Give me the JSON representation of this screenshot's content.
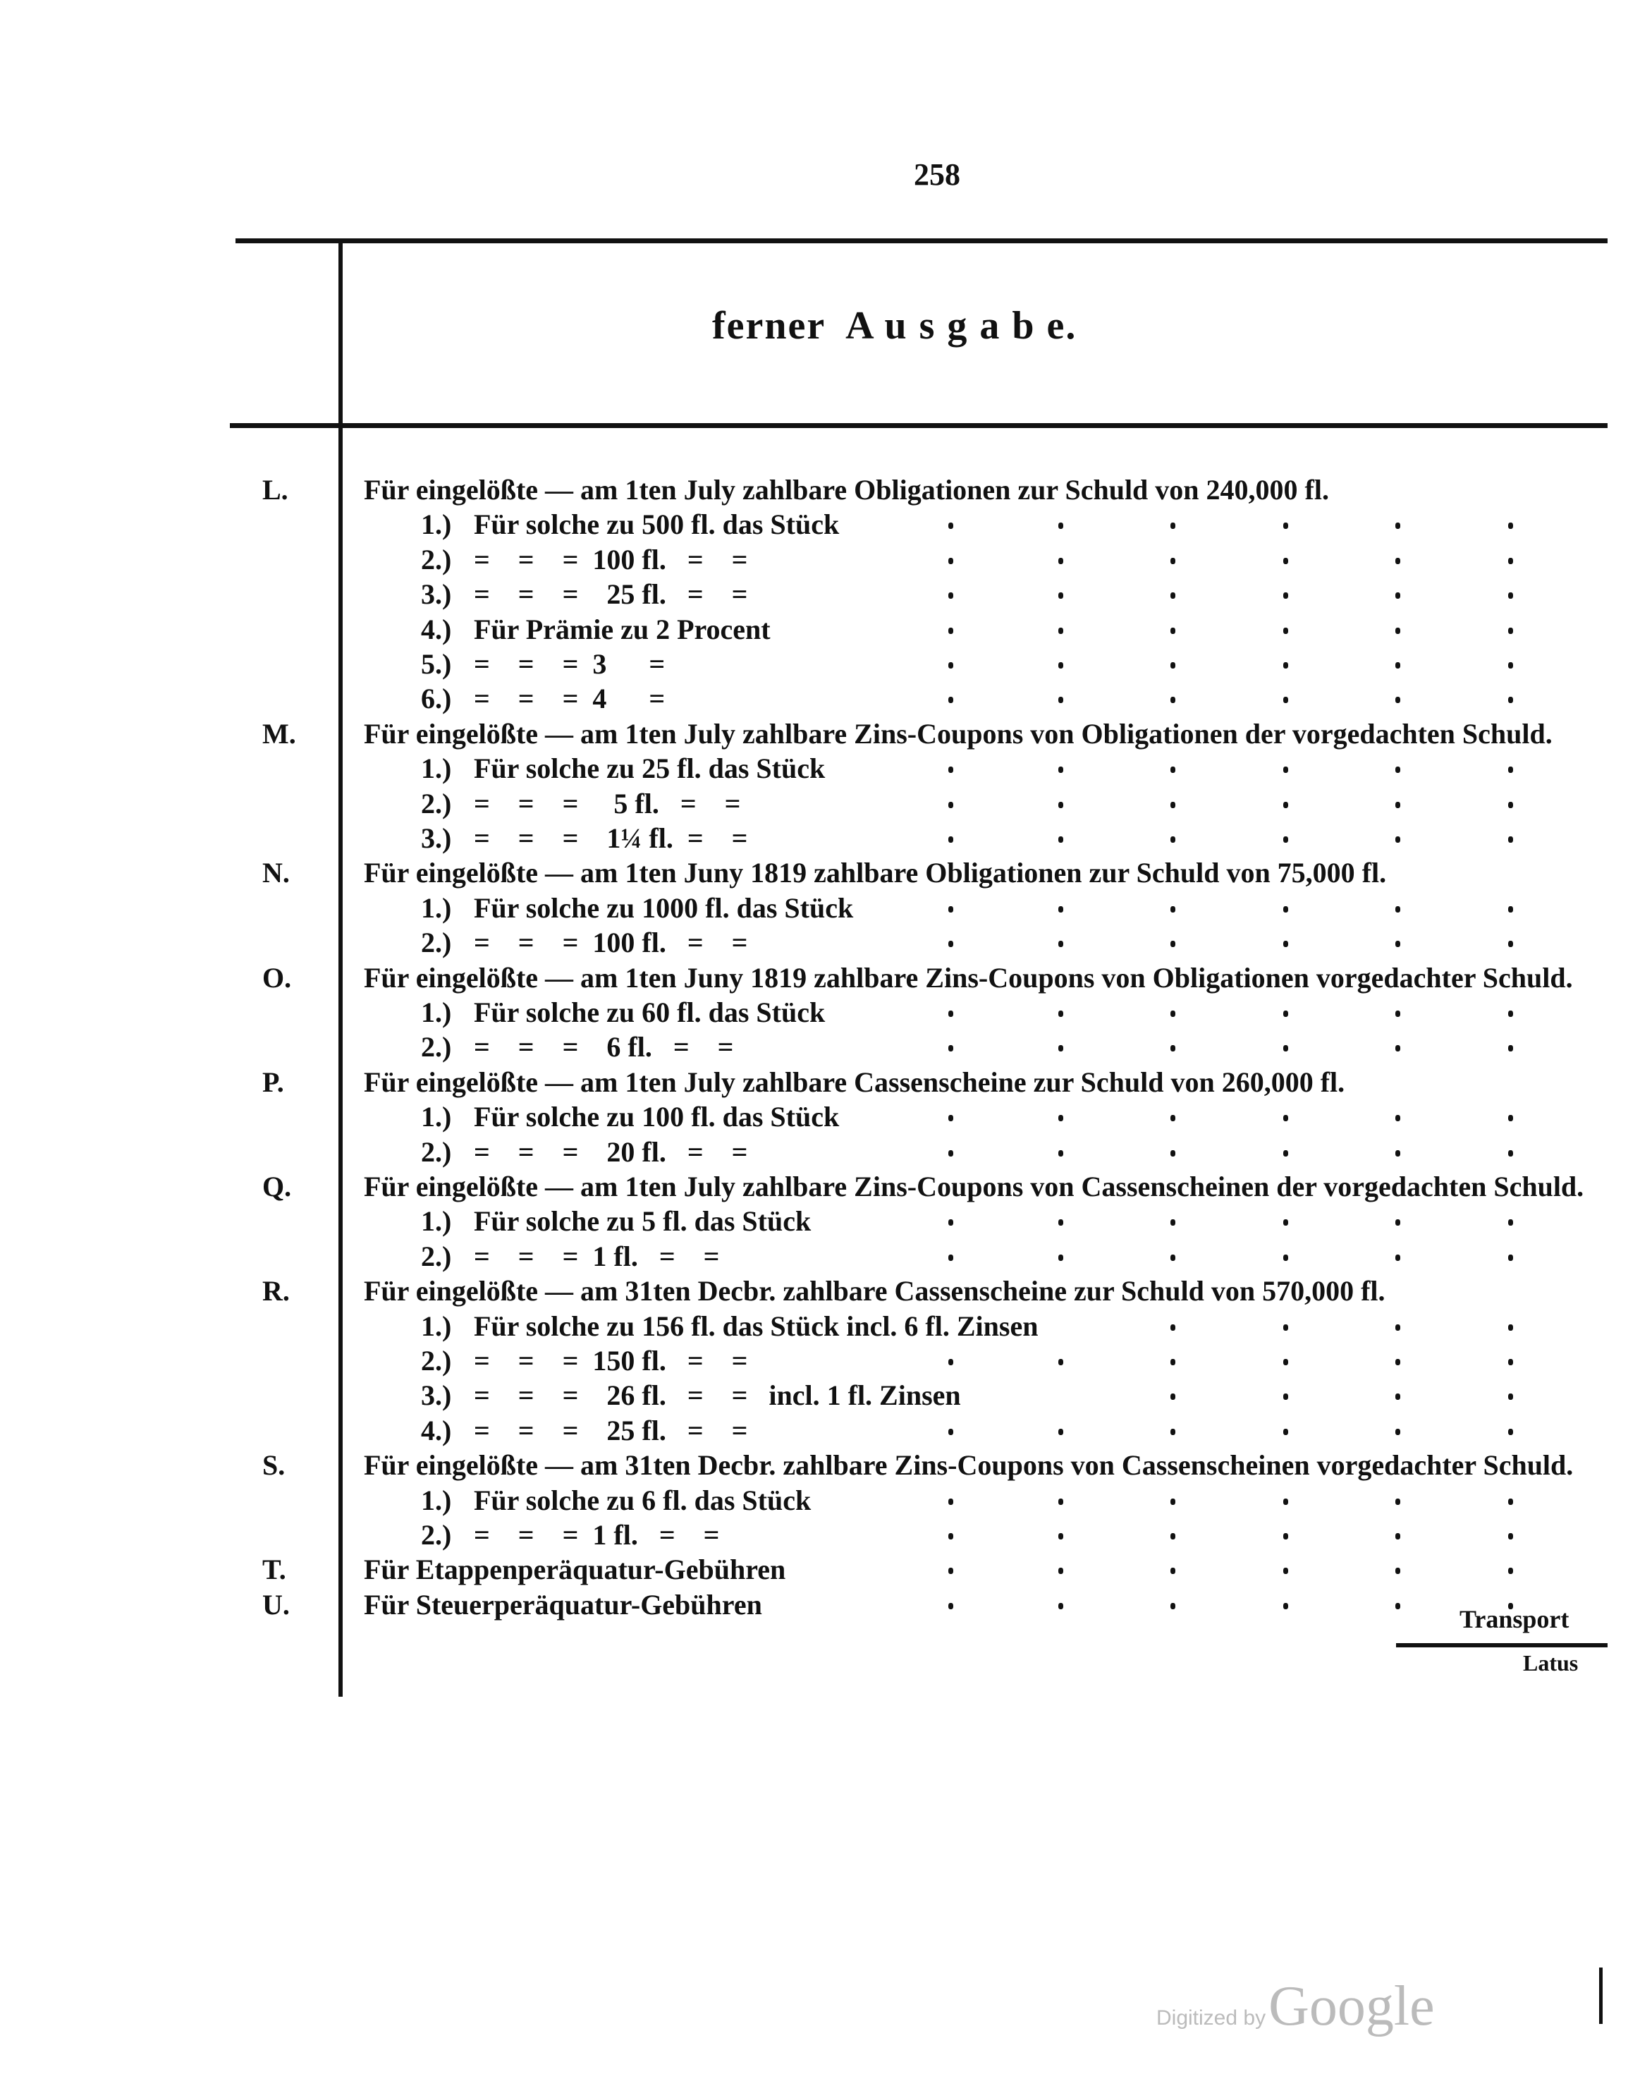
{
  "page_number": "258",
  "title": "ferner  A u s g a b e.",
  "entries": [
    {
      "letter": "L.",
      "text": "Für eingelößte — am 1ten July zahlbare Obligationen zur Schuld von 240,000 fl."
    },
    {
      "num": "1.)",
      "text": "Für solche zu 500 fl. das Stück"
    },
    {
      "num": "2.)",
      "text": "=    =    =  100 fl.   =    ="
    },
    {
      "num": "3.)",
      "text": "=    =    =    25 fl.   =    ="
    },
    {
      "num": "4.)",
      "text": "Für Prämie zu 2 Procent"
    },
    {
      "num": "5.)",
      "text": "=    =    =  3      ="
    },
    {
      "num": "6.)",
      "text": "=    =    =  4      ="
    },
    {
      "letter": "M.",
      "text": "Für eingelößte — am 1ten July zahlbare Zins-Coupons von Obligationen der vorgedachten Schuld."
    },
    {
      "num": "1.)",
      "text": "Für solche zu 25 fl. das Stück"
    },
    {
      "num": "2.)",
      "text": "=    =    =     5 fl.   =    ="
    },
    {
      "num": "3.)",
      "text": "=    =    =    1¼ fl.  =    ="
    },
    {
      "letter": "N.",
      "text": "Für eingelößte — am 1ten Juny 1819 zahlbare Obligationen zur Schuld von 75,000 fl."
    },
    {
      "num": "1.)",
      "text": "Für solche zu 1000 fl. das Stück"
    },
    {
      "num": "2.)",
      "text": "=    =    =  100 fl.   =    ="
    },
    {
      "letter": "O.",
      "text": "Für eingelößte — am 1ten Juny 1819 zahlbare Zins-Coupons von Obligationen vorgedachter Schuld."
    },
    {
      "num": "1.)",
      "text": "Für solche zu 60 fl. das Stück"
    },
    {
      "num": "2.)",
      "text": "=    =    =    6 fl.   =    ="
    },
    {
      "letter": "P.",
      "text": "Für eingelößte — am 1ten July zahlbare Cassenscheine zur Schuld von 260,000 fl."
    },
    {
      "num": "1.)",
      "text": "Für solche zu 100 fl. das Stück"
    },
    {
      "num": "2.)",
      "text": "=    =    =    20 fl.   =    ="
    },
    {
      "letter": "Q.",
      "text": "Für eingelößte — am 1ten July zahlbare Zins-Coupons von Cassenscheinen der vorgedachten Schuld."
    },
    {
      "num": "1.)",
      "text": "Für solche zu 5 fl. das Stück"
    },
    {
      "num": "2.)",
      "text": "=    =    =  1 fl.   =    ="
    },
    {
      "letter": "R.",
      "text": "Für eingelößte — am 31ten Decbr. zahlbare Cassenscheine zur Schuld von 570,000 fl."
    },
    {
      "num": "1.)",
      "text": "Für solche zu 156 fl. das Stück incl. 6 fl. Zinsen"
    },
    {
      "num": "2.)",
      "text": "=    =    =  150 fl.   =    ="
    },
    {
      "num": "3.)",
      "text": "=    =    =    26 fl.   =    =   incl. 1 fl. Zinsen"
    },
    {
      "num": "4.)",
      "text": "=    =    =    25 fl.   =    ="
    },
    {
      "letter": "S.",
      "text": "Für eingelößte — am 31ten Decbr. zahlbare Zins-Coupons von Cassenscheinen vorgedachter Schuld."
    },
    {
      "num": "1.)",
      "text": "Für solche zu 6 fl. das Stück"
    },
    {
      "num": "2.)",
      "text": "=    =    =  1 fl.   =    ="
    },
    {
      "letter": "T.",
      "text": "Für Etappenperäquatur-Gebühren"
    },
    {
      "letter": "U.",
      "text": "Für Steuerperäquatur-Gebühren"
    }
  ],
  "footer": {
    "transport": "Transport",
    "latus": "Latus"
  },
  "watermark": {
    "prefix": "Digitized by",
    "brand": "Google"
  }
}
